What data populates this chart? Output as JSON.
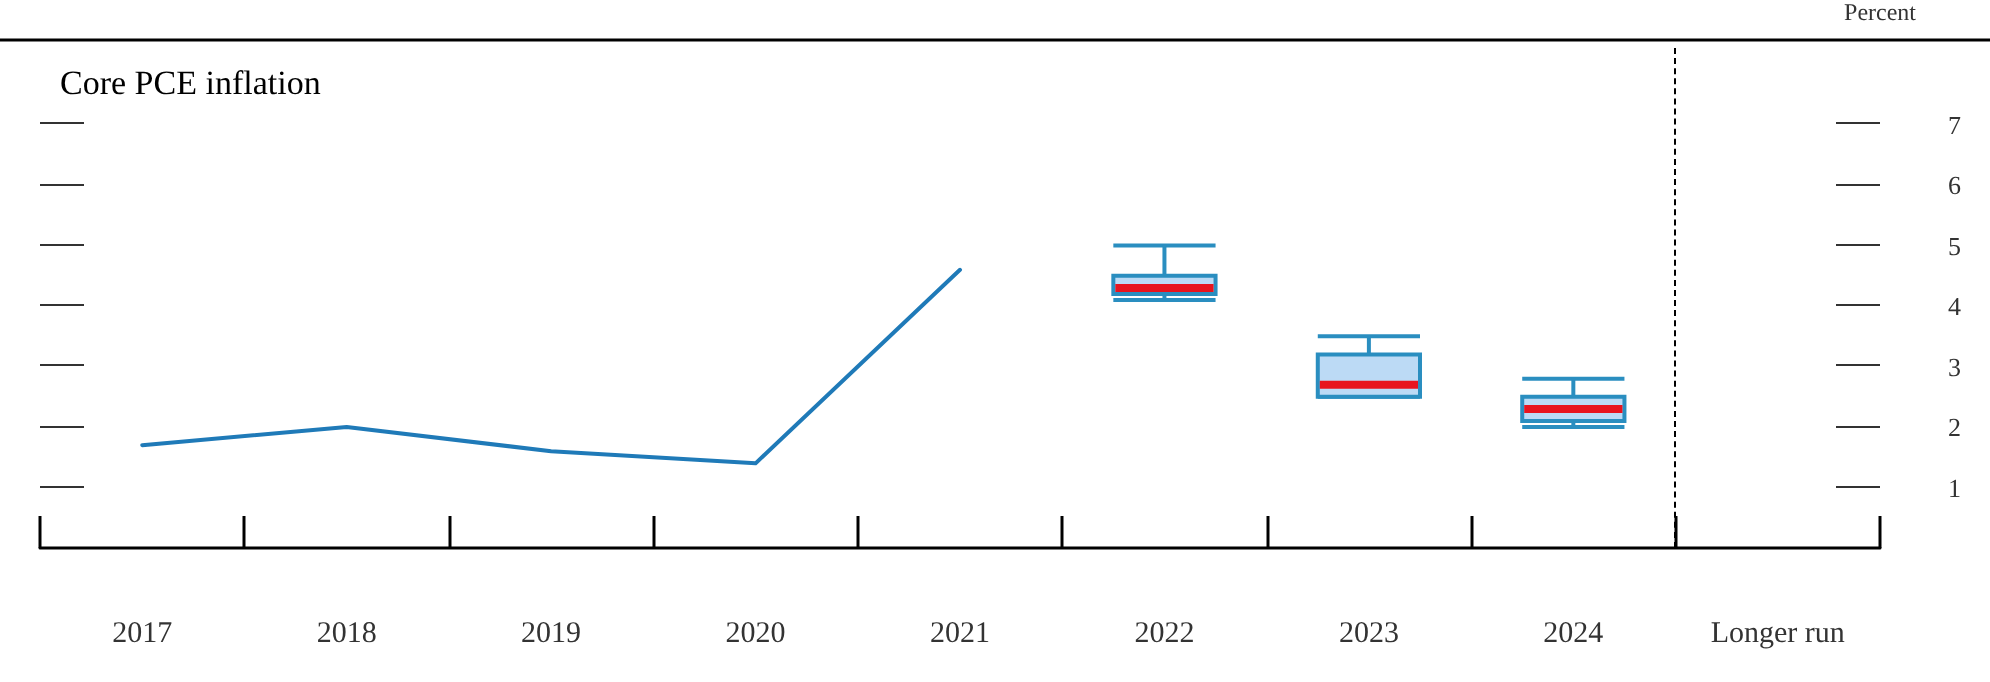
{
  "chart_data": {
    "type": "box",
    "title": "Core PCE inflation",
    "ylabel": "Percent",
    "categories": [
      "2017",
      "2018",
      "2019",
      "2020",
      "2021",
      "2022",
      "2023",
      "2024",
      "Longer run"
    ],
    "series": [
      {
        "type": "line",
        "color": "#1f7ab8",
        "values": [
          1.7,
          2.0,
          1.6,
          1.4,
          4.6,
          null,
          null,
          null,
          null
        ]
      },
      {
        "color": "#2a8ec0",
        "boxes": [
          null,
          null,
          null,
          null,
          null,
          {
            "low": 4.1,
            "q1": 4.2,
            "median": 4.3,
            "q3": 4.5,
            "high": 5.0
          },
          {
            "low": 2.5,
            "q1": 2.5,
            "median": 2.7,
            "q3": 3.2,
            "high": 3.5
          },
          {
            "low": 2.0,
            "q1": 2.1,
            "median": 2.3,
            "q3": 2.5,
            "high": 2.8
          },
          null
        ]
      }
    ],
    "ylim": [
      0,
      8.4
    ],
    "yticks": [
      1,
      2,
      3,
      4,
      5,
      6,
      7
    ],
    "marker": "none",
    "grid": false
  }
}
